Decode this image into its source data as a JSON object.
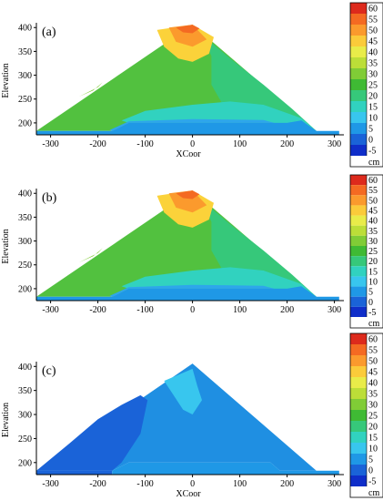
{
  "chart_data": [
    {
      "type": "heatmap",
      "panel_label": "(a)",
      "xlabel": "XCoor",
      "ylabel": "Elevation",
      "x_ticks": [
        -300,
        -200,
        -100,
        0,
        100,
        200,
        300
      ],
      "y_ticks": [
        200,
        250,
        300,
        350,
        400
      ],
      "xlim": [
        -330,
        320
      ],
      "ylim": [
        175,
        410
      ],
      "colorbar": {
        "unit": "cm",
        "levels": [
          60,
          55,
          50,
          45,
          40,
          35,
          30,
          25,
          20,
          15,
          10,
          5,
          0,
          -5
        ],
        "colors": [
          "#dd2a1c",
          "#f46a22",
          "#fb9a2d",
          "#fbcb3a",
          "#e9ec49",
          "#bcde38",
          "#80cc36",
          "#3fba34",
          "#36c87a",
          "#31d2bf",
          "#38c6ee",
          "#1f98e6",
          "#1a63d8",
          "#0f2ec9"
        ]
      },
      "zones": [
        {
          "level": 40,
          "color": "#52c13f",
          "polygon": [
            [
              -330,
              183
            ],
            [
              -170,
              183
            ],
            [
              -135,
              200
            ],
            [
              165,
              200
            ],
            [
              185,
              183
            ],
            [
              262,
              183
            ],
            [
              0,
              406
            ]
          ]
        },
        {
          "level": 35,
          "color": "#80cc36",
          "polygon": [
            [
              -240,
              255
            ],
            [
              -210,
              268
            ],
            [
              -190,
              285
            ],
            [
              -200,
              275
            ]
          ]
        },
        {
          "level": 30,
          "color": "#36c87a",
          "polygon": [
            [
              20,
              385
            ],
            [
              80,
              335
            ],
            [
              150,
              280
            ],
            [
              210,
              230
            ],
            [
              262,
              183
            ],
            [
              185,
              183
            ],
            [
              165,
              200
            ],
            [
              70,
              228
            ],
            [
              40,
              280
            ],
            [
              40,
              340
            ]
          ]
        },
        {
          "level": 25,
          "color": "#31d2bf",
          "polygon": [
            [
              -150,
              205
            ],
            [
              -100,
              225
            ],
            [
              0,
              238
            ],
            [
              80,
              245
            ],
            [
              150,
              238
            ],
            [
              230,
              210
            ],
            [
              262,
              183
            ],
            [
              185,
              183
            ],
            [
              165,
              200
            ],
            [
              -135,
              200
            ]
          ]
        },
        {
          "level": 10,
          "color": "#2ea6eb",
          "polygon": [
            [
              -175,
              185
            ],
            [
              -135,
              203
            ],
            [
              0,
              208
            ],
            [
              150,
              206
            ],
            [
              210,
              190
            ],
            [
              262,
              183
            ],
            [
              185,
              183
            ],
            [
              165,
              200
            ],
            [
              -135,
              200
            ],
            [
              -170,
              183
            ]
          ]
        },
        {
          "level": 5,
          "color": "#1f98e6",
          "polygon": [
            [
              -330,
              175
            ],
            [
              310,
              175
            ],
            [
              310,
              183
            ],
            [
              262,
              183
            ],
            [
              230,
              205
            ],
            [
              200,
              200
            ],
            [
              -135,
              200
            ],
            [
              -170,
              183
            ],
            [
              -330,
              183
            ]
          ]
        },
        {
          "level": 45,
          "color": "#fbd23a",
          "polygon": [
            [
              -75,
              395
            ],
            [
              -60,
              360
            ],
            [
              -30,
              335
            ],
            [
              0,
              328
            ],
            [
              35,
              345
            ],
            [
              45,
              380
            ],
            [
              0,
              406
            ]
          ]
        },
        {
          "level": 50,
          "color": "#fb9a2d",
          "polygon": [
            [
              -50,
              400
            ],
            [
              -35,
              370
            ],
            [
              0,
              360
            ],
            [
              30,
              375
            ],
            [
              0,
              406
            ]
          ]
        },
        {
          "level": 55,
          "color": "#f46a22",
          "polygon": [
            [
              -35,
              400
            ],
            [
              -20,
              390
            ],
            [
              0,
              388
            ],
            [
              15,
              398
            ],
            [
              0,
              406
            ]
          ]
        }
      ]
    },
    {
      "type": "heatmap",
      "panel_label": "(b)",
      "xlabel": "",
      "ylabel": "Elevation",
      "x_ticks": [
        -300,
        -200,
        -100,
        0,
        100,
        200,
        300
      ],
      "y_ticks": [
        200,
        250,
        300,
        350,
        400
      ],
      "xlim": [
        -330,
        320
      ],
      "ylim": [
        175,
        410
      ],
      "colorbar": {
        "unit": "cm",
        "levels": [
          60,
          55,
          50,
          45,
          40,
          35,
          30,
          25,
          20,
          15,
          10,
          5,
          0,
          -5
        ],
        "colors": [
          "#dd2a1c",
          "#f46a22",
          "#fb9a2d",
          "#fbcb3a",
          "#e9ec49",
          "#bcde38",
          "#80cc36",
          "#3fba34",
          "#36c87a",
          "#31d2bf",
          "#38c6ee",
          "#1f98e6",
          "#1a63d8",
          "#0f2ec9"
        ]
      },
      "zones": [
        {
          "level": 40,
          "color": "#52c13f",
          "polygon": [
            [
              -330,
              183
            ],
            [
              -170,
              183
            ],
            [
              -135,
              200
            ],
            [
              165,
              200
            ],
            [
              185,
              183
            ],
            [
              262,
              183
            ],
            [
              0,
              406
            ]
          ]
        },
        {
          "level": 35,
          "color": "#80cc36",
          "polygon": [
            [
              -240,
              255
            ],
            [
              -210,
              268
            ],
            [
              -190,
              285
            ],
            [
              -200,
              275
            ]
          ]
        },
        {
          "level": 30,
          "color": "#36c87a",
          "polygon": [
            [
              20,
              385
            ],
            [
              80,
              335
            ],
            [
              150,
              280
            ],
            [
              210,
              230
            ],
            [
              262,
              183
            ],
            [
              185,
              183
            ],
            [
              165,
              200
            ],
            [
              70,
              228
            ],
            [
              40,
              280
            ],
            [
              40,
              340
            ]
          ]
        },
        {
          "level": 25,
          "color": "#31d2bf",
          "polygon": [
            [
              -150,
              205
            ],
            [
              -100,
              225
            ],
            [
              0,
              238
            ],
            [
              80,
              245
            ],
            [
              150,
              238
            ],
            [
              230,
              210
            ],
            [
              262,
              183
            ],
            [
              185,
              183
            ],
            [
              165,
              200
            ],
            [
              -135,
              200
            ]
          ]
        },
        {
          "level": 10,
          "color": "#2ea6eb",
          "polygon": [
            [
              -175,
              185
            ],
            [
              -135,
              203
            ],
            [
              0,
              208
            ],
            [
              150,
              206
            ],
            [
              210,
              190
            ],
            [
              262,
              183
            ],
            [
              185,
              183
            ],
            [
              165,
              200
            ],
            [
              -135,
              200
            ],
            [
              -170,
              183
            ]
          ]
        },
        {
          "level": 5,
          "color": "#1f98e6",
          "polygon": [
            [
              -330,
              175
            ],
            [
              310,
              175
            ],
            [
              310,
              183
            ],
            [
              262,
              183
            ],
            [
              230,
              205
            ],
            [
              200,
              200
            ],
            [
              -135,
              200
            ],
            [
              -170,
              183
            ],
            [
              -330,
              183
            ]
          ]
        },
        {
          "level": 45,
          "color": "#fbd23a",
          "polygon": [
            [
              -75,
              395
            ],
            [
              -60,
              360
            ],
            [
              -30,
              335
            ],
            [
              0,
              328
            ],
            [
              35,
              345
            ],
            [
              45,
              380
            ],
            [
              0,
              406
            ]
          ]
        },
        {
          "level": 50,
          "color": "#fb9a2d",
          "polygon": [
            [
              -50,
              400
            ],
            [
              -35,
              370
            ],
            [
              0,
              360
            ],
            [
              30,
              375
            ],
            [
              0,
              406
            ]
          ]
        },
        {
          "level": 55,
          "color": "#f46a22",
          "polygon": [
            [
              -35,
              400
            ],
            [
              -20,
              390
            ],
            [
              0,
              388
            ],
            [
              15,
              398
            ],
            [
              0,
              406
            ]
          ]
        }
      ]
    },
    {
      "type": "heatmap",
      "panel_label": "(c)",
      "xlabel": "XCoor",
      "ylabel": "Elevation",
      "x_ticks": [
        -300,
        -200,
        -100,
        0,
        100,
        200,
        300
      ],
      "y_ticks": [
        200,
        250,
        300,
        350,
        400
      ],
      "xlim": [
        -330,
        320
      ],
      "ylim": [
        175,
        410
      ],
      "colorbar": {
        "unit": "cm",
        "levels": [
          60,
          55,
          50,
          45,
          40,
          35,
          30,
          25,
          20,
          15,
          10,
          5,
          0,
          -5
        ],
        "colors": [
          "#dd2a1c",
          "#f46a22",
          "#fb9a2d",
          "#fbcb3a",
          "#e9ec49",
          "#bcde38",
          "#80cc36",
          "#3fba34",
          "#36c87a",
          "#31d2bf",
          "#38c6ee",
          "#1f98e6",
          "#1a63d8",
          "#0f2ec9"
        ]
      },
      "zones": [
        {
          "level": 5,
          "color": "#1f8fe2",
          "polygon": [
            [
              -330,
              183
            ],
            [
              -170,
              183
            ],
            [
              -135,
              200
            ],
            [
              165,
              200
            ],
            [
              185,
              183
            ],
            [
              262,
              183
            ],
            [
              0,
              406
            ]
          ]
        },
        {
          "level": 0,
          "color": "#1a63d8",
          "polygon": [
            [
              -330,
              183
            ],
            [
              -170,
              183
            ],
            [
              -150,
              200
            ],
            [
              -110,
              260
            ],
            [
              -95,
              330
            ],
            [
              -110,
              340
            ],
            [
              -150,
              320
            ],
            [
              -200,
              290
            ],
            [
              -260,
              240
            ]
          ]
        },
        {
          "level": 0,
          "color": "#1a63d8",
          "polygon": [
            [
              -330,
              175
            ],
            [
              -170,
              175
            ],
            [
              -170,
              183
            ],
            [
              -330,
              183
            ]
          ]
        },
        {
          "level": 10,
          "color": "#38c6ee",
          "polygon": [
            [
              -60,
              370
            ],
            [
              -40,
              340
            ],
            [
              -20,
              310
            ],
            [
              0,
              300
            ],
            [
              20,
              330
            ],
            [
              10,
              360
            ],
            [
              0,
              395
            ]
          ]
        },
        {
          "level": 5,
          "color": "#1f98e6",
          "polygon": [
            [
              -170,
              175
            ],
            [
              310,
              175
            ],
            [
              310,
              183
            ],
            [
              262,
              183
            ],
            [
              185,
              183
            ],
            [
              165,
              200
            ],
            [
              -135,
              200
            ],
            [
              -170,
              183
            ]
          ]
        }
      ]
    }
  ]
}
